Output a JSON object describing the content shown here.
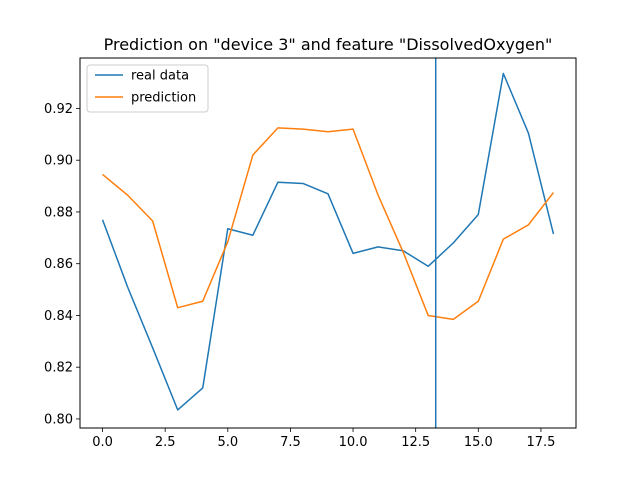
{
  "chart_data": {
    "type": "line",
    "title": "Prediction on \"device 3\" and feature \"DissolvedOxygen\"",
    "xlabel": "",
    "ylabel": "",
    "x": [
      0,
      1,
      2,
      3,
      4,
      5,
      6,
      7,
      8,
      9,
      10,
      11,
      12,
      13,
      14,
      15,
      16,
      17,
      18
    ],
    "xlim": [
      -0.9,
      18.9
    ],
    "ylim": [
      0.7965,
      0.9395
    ],
    "xticks": [
      0.0,
      2.5,
      5.0,
      7.5,
      10.0,
      12.5,
      15.0,
      17.5
    ],
    "xtick_labels": [
      "0.0",
      "2.5",
      "5.0",
      "7.5",
      "10.0",
      "12.5",
      "15.0",
      "17.5"
    ],
    "yticks": [
      0.8,
      0.82,
      0.84,
      0.86,
      0.88,
      0.9,
      0.92
    ],
    "ytick_labels": [
      "0.80",
      "0.82",
      "0.84",
      "0.86",
      "0.88",
      "0.90",
      "0.92"
    ],
    "grid": false,
    "legend_position": "top-left",
    "vline_x": 13.3,
    "vline_color": "#1f77b4",
    "series": [
      {
        "name": "real data",
        "color": "#1f77b4",
        "values": [
          0.877,
          0.851,
          0.8275,
          0.8035,
          0.812,
          0.8735,
          0.871,
          0.8915,
          0.891,
          0.887,
          0.864,
          0.8665,
          0.865,
          0.859,
          0.868,
          0.879,
          0.9335,
          0.9105,
          0.8715
        ]
      },
      {
        "name": "prediction",
        "color": "#ff7f0e",
        "values": [
          0.8945,
          0.8865,
          0.8765,
          0.843,
          0.8455,
          0.8685,
          0.902,
          0.9125,
          0.912,
          0.911,
          0.912,
          0.8865,
          0.8645,
          0.84,
          0.8385,
          0.8455,
          0.8695,
          0.875,
          0.8875
        ]
      }
    ]
  }
}
